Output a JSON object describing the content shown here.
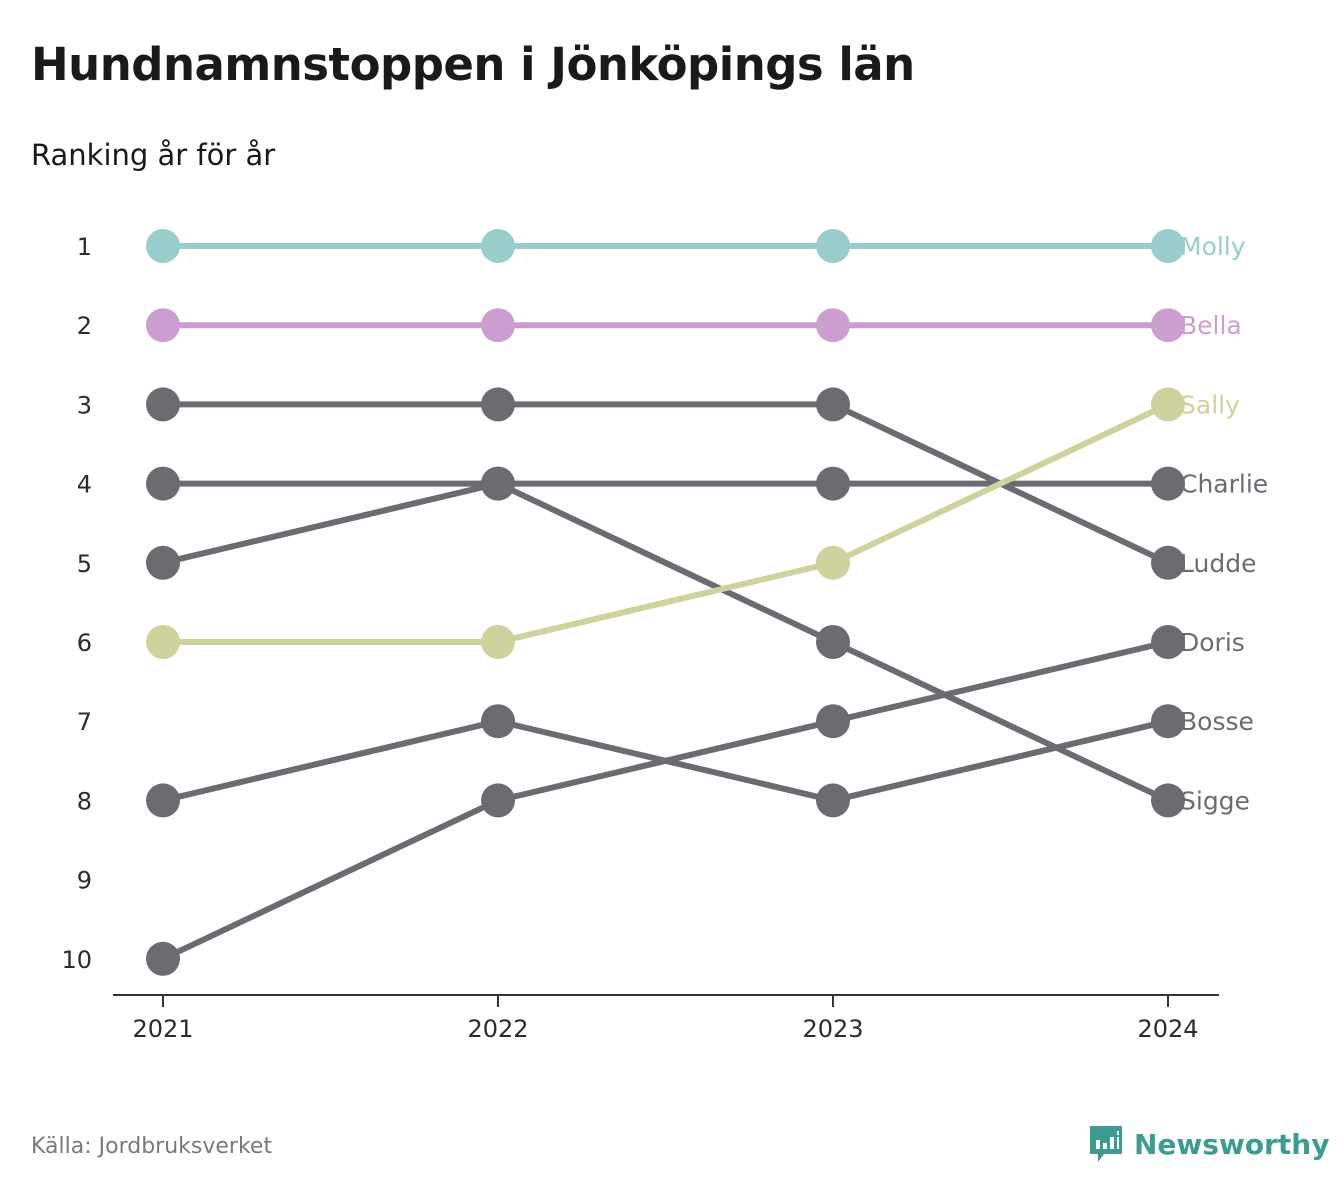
{
  "header": {
    "title": "Hundnamnstoppen i Jönköpings län",
    "subtitle": "Ranking år för år"
  },
  "footer": {
    "source": "Källa: Jordbruksverket",
    "brand": "Newsworthy",
    "brand_icon": "bar-chart-speech-bubble-icon",
    "brand_color": "#3c9c92"
  },
  "chart_data": {
    "type": "line",
    "x": [
      "2021",
      "2022",
      "2023",
      "2024"
    ],
    "y_ticks": [
      "1",
      "2",
      "3",
      "4",
      "5",
      "6",
      "7",
      "8",
      "9",
      "10"
    ],
    "ylim": [
      1,
      10
    ],
    "y_inverted": true,
    "grid": false,
    "series": [
      {
        "name": "Molly",
        "values": [
          1,
          1,
          1,
          1
        ],
        "color": "#99cdcb"
      },
      {
        "name": "Bella",
        "values": [
          2,
          2,
          2,
          2
        ],
        "color": "#cc9dcf"
      },
      {
        "name": "Sally",
        "values": [
          6,
          6,
          5,
          3
        ],
        "color": "#cfd29c"
      },
      {
        "name": "Charlie",
        "values": [
          4,
          4,
          4,
          4
        ],
        "color": "#6b6b72"
      },
      {
        "name": "Ludde",
        "values": [
          3,
          3,
          3,
          5
        ],
        "color": "#6b6b72"
      },
      {
        "name": "Doris",
        "values": [
          10,
          8,
          7,
          6
        ],
        "color": "#6b6b72"
      },
      {
        "name": "Bosse",
        "values": [
          8,
          7,
          8,
          7
        ],
        "color": "#6b6b72"
      },
      {
        "name": "Sigge",
        "values": [
          5,
          4,
          6,
          8
        ],
        "color": "#6b6b72"
      }
    ],
    "label_positions": "end-of-line"
  }
}
